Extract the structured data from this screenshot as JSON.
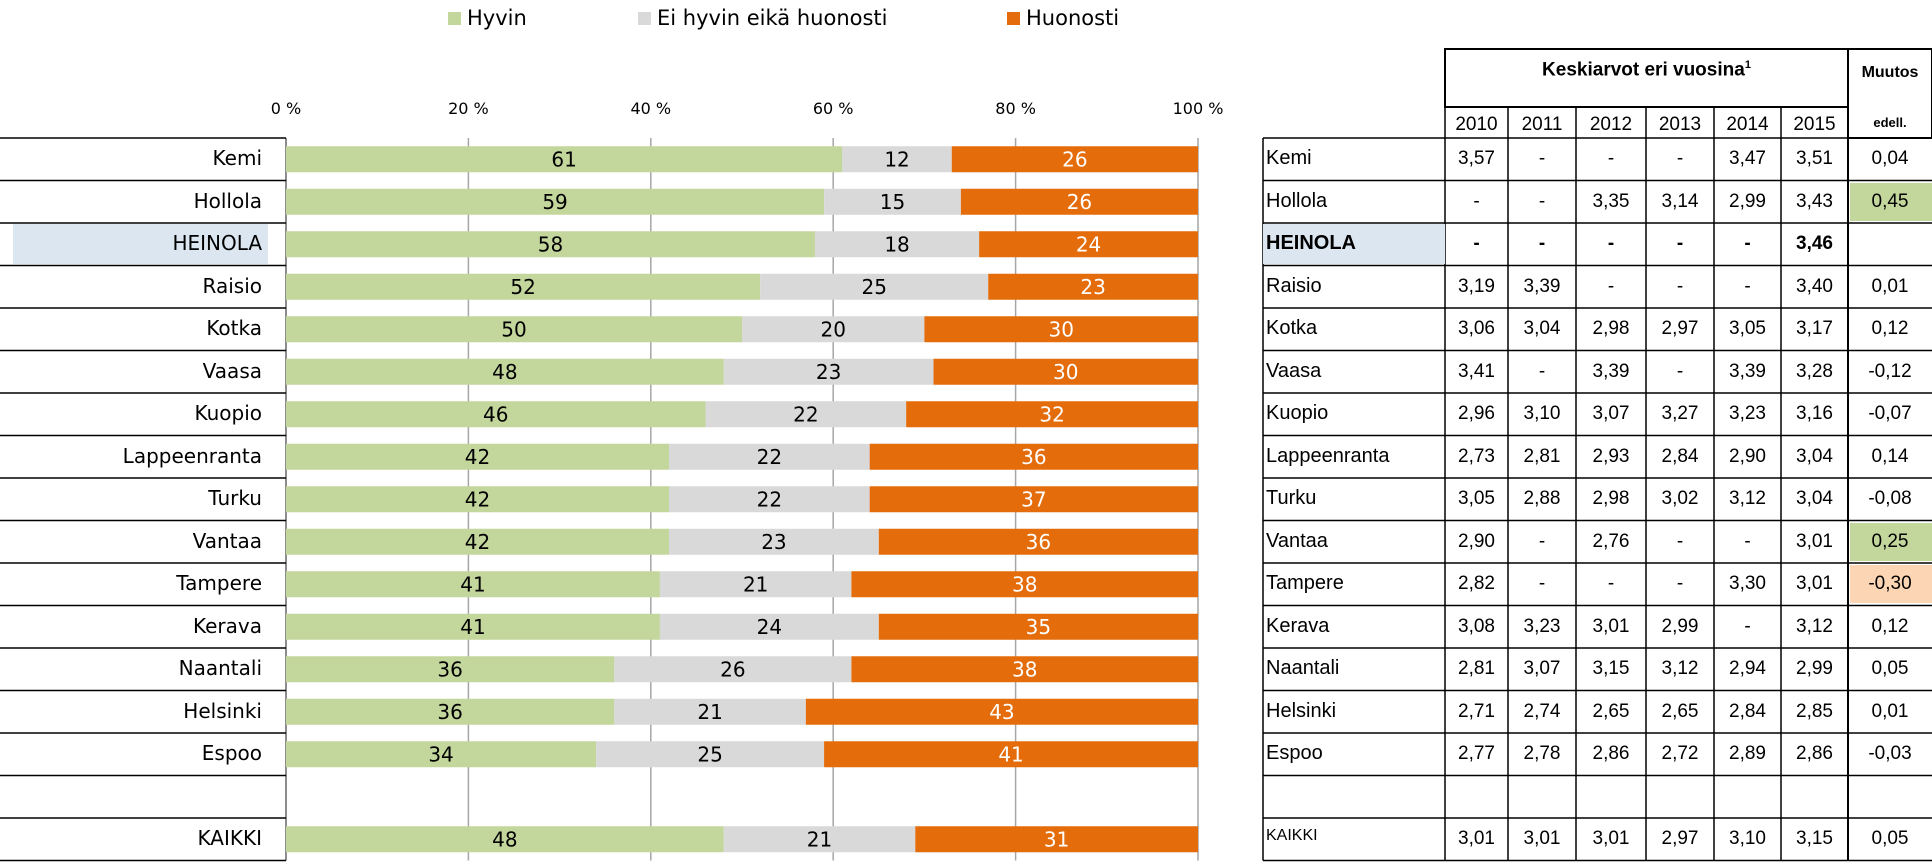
{
  "chart_data": {
    "type": "bar",
    "orientation": "horizontal",
    "stacked": true,
    "percent": true,
    "xlim": [
      0,
      100
    ],
    "x_ticks": [
      "0 %",
      "20 %",
      "40 %",
      "60 %",
      "80 %",
      "100 %"
    ],
    "legend": {
      "position": "top",
      "items": [
        {
          "label": "Hyvin",
          "color": "#c3d69b"
        },
        {
          "label": "Ei hyvin eikä huonosti",
          "color": "#d9d9d9"
        },
        {
          "label": "Huonosti",
          "color": "#e46c0a"
        }
      ]
    },
    "highlight_category": "HEINOLA",
    "highlight_color": "#dce6f1",
    "rows": [
      {
        "city": "Kemi",
        "values": [
          61,
          12,
          26
        ]
      },
      {
        "city": "Hollola",
        "values": [
          59,
          15,
          26
        ]
      },
      {
        "city": "HEINOLA",
        "values": [
          58,
          18,
          24
        ]
      },
      {
        "city": "Raisio",
        "values": [
          52,
          25,
          23
        ]
      },
      {
        "city": "Kotka",
        "values": [
          50,
          20,
          30
        ]
      },
      {
        "city": "Vaasa",
        "values": [
          48,
          23,
          30
        ]
      },
      {
        "city": "Kuopio",
        "values": [
          46,
          22,
          32
        ]
      },
      {
        "city": "Lappeenranta",
        "values": [
          42,
          22,
          36
        ]
      },
      {
        "city": "Turku",
        "values": [
          42,
          22,
          37
        ]
      },
      {
        "city": "Vantaa",
        "values": [
          42,
          23,
          36
        ]
      },
      {
        "city": "Tampere",
        "values": [
          41,
          21,
          38
        ]
      },
      {
        "city": "Kerava",
        "values": [
          41,
          24,
          35
        ]
      },
      {
        "city": "Naantali",
        "values": [
          36,
          26,
          38
        ]
      },
      {
        "city": "Helsinki",
        "values": [
          36,
          21,
          43
        ]
      },
      {
        "city": "Espoo",
        "values": [
          34,
          25,
          41
        ]
      },
      null,
      {
        "city": "KAIKKI",
        "values": [
          48,
          21,
          31
        ]
      }
    ]
  },
  "table": {
    "title": "Keskiarvot eri vuosina",
    "title_superscript": "1",
    "change_header": "Muutos",
    "change_subheader": "edell.",
    "years": [
      "2010",
      "2011",
      "2012",
      "2013",
      "2014",
      "2015"
    ],
    "positive_change_color": "#c3d69b",
    "negative_change_color": "#fcd5b4",
    "rows": [
      {
        "name": "Kemi",
        "values": [
          "3,57",
          "-",
          "-",
          "-",
          "3,47",
          "3,51"
        ],
        "change": "0,04",
        "change_highlight": null
      },
      {
        "name": "Hollola",
        "values": [
          "-",
          "-",
          "3,35",
          "3,14",
          "2,99",
          "3,43"
        ],
        "change": "0,45",
        "change_highlight": "positive"
      },
      {
        "name": "HEINOLA",
        "values": [
          "-",
          "-",
          "-",
          "-",
          "-",
          "3,46"
        ],
        "change": "",
        "change_highlight": null
      },
      {
        "name": "Raisio",
        "values": [
          "3,19",
          "3,39",
          "-",
          "-",
          "-",
          "3,40"
        ],
        "change": "0,01",
        "change_highlight": null
      },
      {
        "name": "Kotka",
        "values": [
          "3,06",
          "3,04",
          "2,98",
          "2,97",
          "3,05",
          "3,17"
        ],
        "change": "0,12",
        "change_highlight": null
      },
      {
        "name": "Vaasa",
        "values": [
          "3,41",
          "-",
          "3,39",
          "-",
          "3,39",
          "3,28"
        ],
        "change": "-0,12",
        "change_highlight": null
      },
      {
        "name": "Kuopio",
        "values": [
          "2,96",
          "3,10",
          "3,07",
          "3,27",
          "3,23",
          "3,16"
        ],
        "change": "-0,07",
        "change_highlight": null
      },
      {
        "name": "Lappeenranta",
        "values": [
          "2,73",
          "2,81",
          "2,93",
          "2,84",
          "2,90",
          "3,04"
        ],
        "change": "0,14",
        "change_highlight": null
      },
      {
        "name": "Turku",
        "values": [
          "3,05",
          "2,88",
          "2,98",
          "3,02",
          "3,12",
          "3,04"
        ],
        "change": "-0,08",
        "change_highlight": null
      },
      {
        "name": "Vantaa",
        "values": [
          "2,90",
          "-",
          "2,76",
          "-",
          "-",
          "3,01"
        ],
        "change": "0,25",
        "change_highlight": "positive"
      },
      {
        "name": "Tampere",
        "values": [
          "2,82",
          "-",
          "-",
          "-",
          "3,30",
          "3,01"
        ],
        "change": "-0,30",
        "change_highlight": "negative"
      },
      {
        "name": "Kerava",
        "values": [
          "3,08",
          "3,23",
          "3,01",
          "2,99",
          "-",
          "3,12"
        ],
        "change": "0,12",
        "change_highlight": null
      },
      {
        "name": "Naantali",
        "values": [
          "2,81",
          "3,07",
          "3,15",
          "3,12",
          "2,94",
          "2,99"
        ],
        "change": "0,05",
        "change_highlight": null
      },
      {
        "name": "Helsinki",
        "values": [
          "2,71",
          "2,74",
          "2,65",
          "2,65",
          "2,84",
          "2,85"
        ],
        "change": "0,01",
        "change_highlight": null
      },
      {
        "name": "Espoo",
        "values": [
          "2,77",
          "2,78",
          "2,86",
          "2,72",
          "2,89",
          "2,86"
        ],
        "change": "-0,03",
        "change_highlight": null
      },
      null,
      {
        "name": "KAIKKI",
        "values": [
          "3,01",
          "3,01",
          "3,01",
          "2,97",
          "3,10",
          "3,15"
        ],
        "change": "0,05",
        "change_highlight": null
      }
    ]
  }
}
